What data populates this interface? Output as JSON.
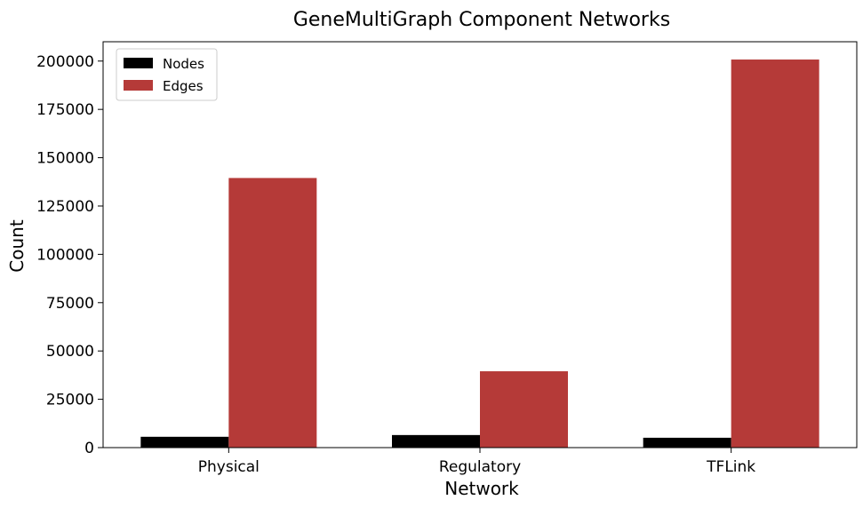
{
  "chart_data": {
    "type": "bar",
    "title": "GeneMultiGraph Component Networks",
    "xlabel": "Network",
    "ylabel": "Count",
    "categories": [
      "Physical",
      "Regulatory",
      "TFLink"
    ],
    "series": [
      {
        "name": "Nodes",
        "values": [
          5600,
          6500,
          5100
        ],
        "color": "#000000"
      },
      {
        "name": "Edges",
        "values": [
          139500,
          39500,
          200800
        ],
        "color": "#b53a38"
      }
    ],
    "ylim": [
      0,
      210000
    ],
    "yticks": [
      0,
      25000,
      50000,
      75000,
      100000,
      125000,
      150000,
      175000,
      200000
    ],
    "ytick_labels": [
      "0",
      "25000",
      "50000",
      "75000",
      "100000",
      "125000",
      "150000",
      "175000",
      "200000"
    ],
    "grid": false,
    "legend_placement": "top-left"
  }
}
